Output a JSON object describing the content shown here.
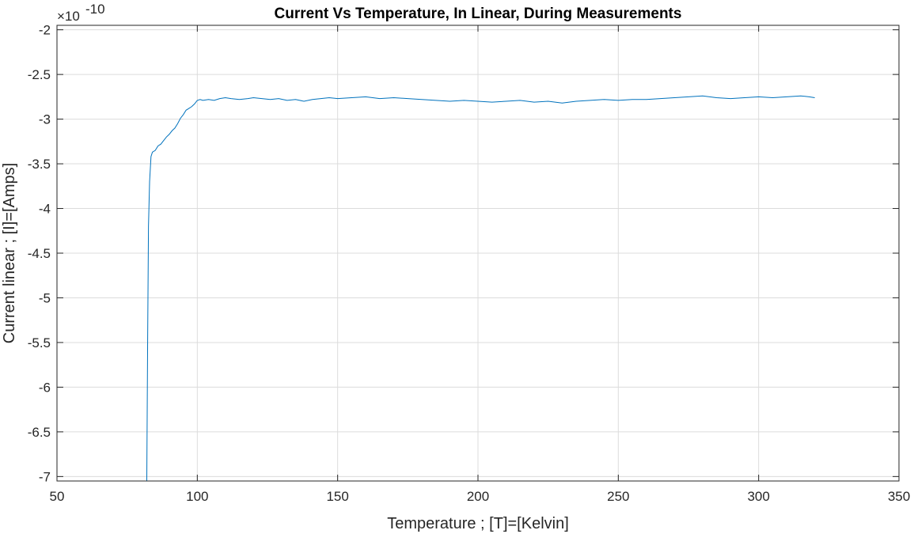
{
  "chart_data": {
    "type": "line",
    "title": "Current Vs Temperature, In Linear, During Measurements",
    "xlabel": "Temperature ; [T]=[Kelvin]",
    "ylabel": "Current linear ; [I]=[Amps]",
    "exponent_prefix": "×10",
    "exponent_power": "-10",
    "xlim": [
      50,
      350
    ],
    "ylim": [
      -7.05,
      -1.95
    ],
    "grid": true,
    "x_ticks": [
      50,
      100,
      150,
      200,
      250,
      300,
      350
    ],
    "x_tick_labels": [
      "50",
      "100",
      "150",
      "200",
      "250",
      "300",
      "350"
    ],
    "y_ticks": [
      -2,
      -2.5,
      -3,
      -3.5,
      -4,
      -4.5,
      -5,
      -5.5,
      -6,
      -6.5,
      -7
    ],
    "y_tick_labels": [
      "-2",
      "-2.5",
      "-3",
      "-3.5",
      "-4",
      "-4.5",
      "-5",
      "-5.5",
      "-6",
      "-6.5",
      "-7"
    ],
    "series": [
      {
        "name": "Current",
        "color": "#0072BD",
        "x": [
          82.0,
          82.3,
          82.6,
          83.0,
          83.5,
          84.0,
          85.0,
          86.0,
          87.0,
          88.0,
          89.0,
          90.0,
          91.0,
          92.0,
          93.0,
          94.0,
          95.0,
          96.0,
          97.0,
          98.0,
          99.0,
          100.0,
          101.0,
          102.0,
          104.0,
          106.0,
          108.0,
          110.0,
          112.0,
          115.0,
          118.0,
          120.0,
          123.0,
          126.0,
          129.0,
          132.0,
          135.0,
          138.0,
          141.0,
          144.0,
          147.0,
          150.0,
          155.0,
          160.0,
          165.0,
          170.0,
          175.0,
          180.0,
          185.0,
          190.0,
          195.0,
          200.0,
          205.0,
          210.0,
          215.0,
          220.0,
          225.0,
          230.0,
          235.0,
          240.0,
          245.0,
          250.0,
          255.0,
          260.0,
          265.0,
          270.0,
          275.0,
          280.0,
          285.0,
          290.0,
          295.0,
          300.0,
          305.0,
          310.0,
          315.0,
          318.0,
          320.0
        ],
        "values": [
          -7.05,
          -5.5,
          -4.2,
          -3.7,
          -3.42,
          -3.37,
          -3.35,
          -3.3,
          -3.28,
          -3.24,
          -3.2,
          -3.17,
          -3.13,
          -3.1,
          -3.05,
          -2.99,
          -2.95,
          -2.9,
          -2.88,
          -2.86,
          -2.83,
          -2.79,
          -2.78,
          -2.79,
          -2.78,
          -2.79,
          -2.77,
          -2.76,
          -2.77,
          -2.78,
          -2.77,
          -2.76,
          -2.77,
          -2.78,
          -2.77,
          -2.79,
          -2.78,
          -2.8,
          -2.78,
          -2.77,
          -2.76,
          -2.77,
          -2.76,
          -2.75,
          -2.77,
          -2.76,
          -2.77,
          -2.78,
          -2.79,
          -2.8,
          -2.79,
          -2.8,
          -2.81,
          -2.8,
          -2.79,
          -2.81,
          -2.8,
          -2.82,
          -2.8,
          -2.79,
          -2.78,
          -2.79,
          -2.78,
          -2.78,
          -2.77,
          -2.76,
          -2.75,
          -2.74,
          -2.76,
          -2.77,
          -2.76,
          -2.75,
          -2.76,
          -2.75,
          -2.74,
          -2.75,
          -2.76
        ]
      }
    ]
  }
}
